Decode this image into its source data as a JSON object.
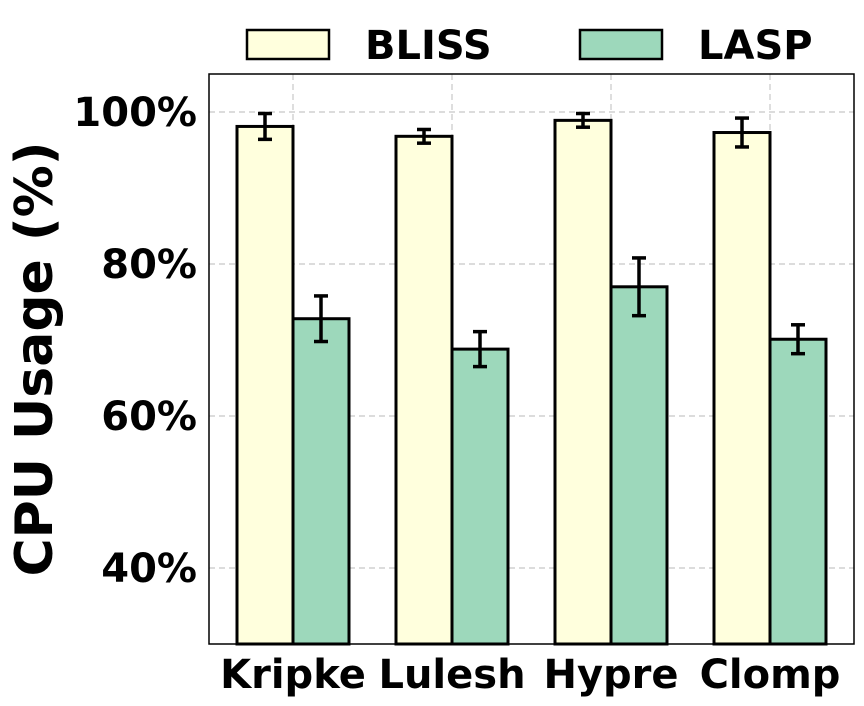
{
  "chart_data": {
    "type": "bar",
    "ylabel": "CPU Usage (%)",
    "xlabel": "",
    "title": "",
    "categories": [
      "Kripke",
      "Lulesh",
      "Hypre",
      "Clomp"
    ],
    "series": [
      {
        "name": "BLISS",
        "color": "#ffffdd",
        "values": [
          98.1,
          96.8,
          98.9,
          97.3
        ],
        "errors": [
          1.7,
          0.9,
          0.9,
          1.9
        ]
      },
      {
        "name": "LASP",
        "color": "#9dd8bb",
        "values": [
          72.8,
          68.8,
          77.0,
          70.1
        ],
        "errors": [
          3.0,
          2.3,
          3.8,
          1.9
        ]
      }
    ],
    "ylim": [
      30,
      105
    ],
    "yticks": [
      40,
      60,
      80,
      100
    ],
    "ytick_labels": [
      "40%",
      "60%",
      "80%",
      "100%"
    ],
    "grid": true,
    "legend_position": "top"
  }
}
